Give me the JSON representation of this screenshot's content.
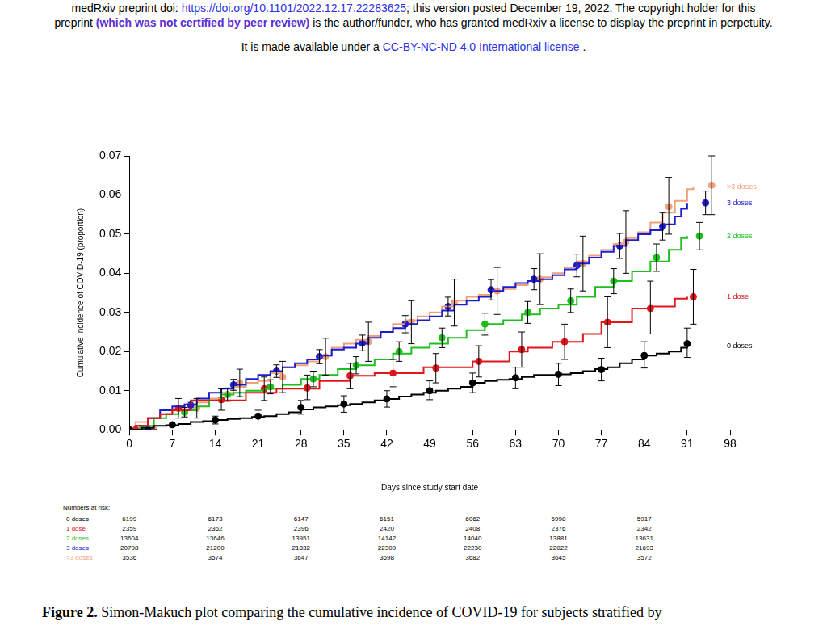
{
  "header": {
    "lines": [
      [
        "medRxiv preprint doi: ",
        "https://doi.org/10.1101/2022.12.17.22283625",
        "; this version posted December 19, 2022. The copyright holder for this"
      ],
      [
        "preprint ",
        "(which was not certified by peer review)",
        " is the author/funder, who has granted medRxiv a license to display the preprint in perpetuity."
      ],
      [
        "It is made available under a ",
        "CC-BY-NC-ND 4.0 International license",
        " ."
      ]
    ]
  },
  "chart_data": {
    "type": "line",
    "line_style": "step",
    "marker": "circle",
    "grid": false,
    "x_label": "Days since study start date",
    "y_label": "Cumulative incidence of COVID-19 (proportion)",
    "xlim": [
      0,
      98
    ],
    "xticks": [
      0,
      7,
      14,
      21,
      28,
      35,
      42,
      49,
      56,
      63,
      70,
      77,
      84,
      91,
      98
    ],
    "ylim": [
      0,
      0.07
    ],
    "yticks": [
      {
        "value": 0,
        "label": "0.00"
      },
      {
        "value": 0.01,
        "label": "0.01"
      },
      {
        "value": 0.02,
        "label": "0.02"
      },
      {
        "value": 0.03,
        "label": "0.03"
      },
      {
        "value": 0.04,
        "label": "0.04"
      },
      {
        "value": 0.05,
        "label": "0.05"
      },
      {
        "value": 0.06,
        "label": "0.06"
      },
      {
        "value": 0.07,
        "label": "0.07"
      }
    ],
    "series": [
      {
        "name": "0 doses",
        "color": "#000000",
        "x": [
          0,
          2,
          4,
          6,
          8,
          10,
          12,
          14,
          16,
          18,
          20,
          22,
          24,
          26,
          28,
          30,
          32,
          34,
          36,
          38,
          40,
          42,
          44,
          46,
          48,
          50,
          52,
          54,
          56,
          58,
          60,
          62,
          64,
          66,
          68,
          70,
          72,
          74,
          76,
          78,
          80,
          82,
          84,
          86,
          88,
          90,
          91
        ],
        "values": [
          0,
          0.0005,
          0.001,
          0.0012,
          0.0015,
          0.002,
          0.0022,
          0.0025,
          0.0028,
          0.003,
          0.0033,
          0.0035,
          0.004,
          0.0045,
          0.0052,
          0.0057,
          0.006,
          0.0063,
          0.0066,
          0.007,
          0.0075,
          0.0079,
          0.0085,
          0.009,
          0.0095,
          0.01,
          0.0105,
          0.011,
          0.012,
          0.0125,
          0.0128,
          0.013,
          0.0135,
          0.014,
          0.014,
          0.0142,
          0.0145,
          0.015,
          0.0155,
          0.016,
          0.017,
          0.018,
          0.019,
          0.0195,
          0.02,
          0.021,
          0.0215
        ],
        "points": {
          "x": [
            0,
            7,
            14,
            21,
            28,
            35,
            42,
            49,
            56,
            63,
            70,
            77,
            84,
            91
          ],
          "values": [
            0,
            0.0013,
            0.0025,
            0.0035,
            0.0057,
            0.0066,
            0.0079,
            0.01,
            0.012,
            0.0133,
            0.0142,
            0.0154,
            0.019,
            0.022
          ],
          "lower": [
            0,
            0.0008,
            0.0015,
            0.002,
            0.004,
            0.0045,
            0.0058,
            0.0077,
            0.0095,
            0.0105,
            0.0113,
            0.0125,
            0.0158,
            0.0185
          ],
          "upper": [
            0,
            0.002,
            0.0035,
            0.005,
            0.0075,
            0.0087,
            0.01,
            0.0125,
            0.0145,
            0.016,
            0.017,
            0.0183,
            0.0225,
            0.026
          ]
        }
      },
      {
        "name": "1 dose",
        "color": "#e0161b",
        "x": [
          0,
          1,
          3,
          5,
          7,
          10,
          19,
          24,
          31,
          36,
          40,
          48,
          56,
          62,
          65,
          69,
          74,
          77,
          82,
          85,
          89,
          91
        ],
        "values": [
          0,
          0.001,
          0.003,
          0.004,
          0.005,
          0.0075,
          0.0095,
          0.0105,
          0.0125,
          0.0138,
          0.0145,
          0.016,
          0.0175,
          0.02,
          0.021,
          0.0225,
          0.0245,
          0.0275,
          0.031,
          0.0315,
          0.0335,
          0.034
        ],
        "points": {
          "x": [
            1,
            8,
            15,
            22,
            29,
            36,
            43,
            50,
            57,
            64,
            71,
            78,
            85,
            92
          ],
          "values": [
            0,
            0.0055,
            0.0077,
            0.0105,
            0.0107,
            0.0138,
            0.0145,
            0.0158,
            0.0175,
            0.0205,
            0.0225,
            0.0275,
            0.031,
            0.034
          ],
          "lower": [
            0,
            0.003,
            0.005,
            0.0075,
            0.0077,
            0.0105,
            0.011,
            0.012,
            0.0135,
            0.016,
            0.018,
            0.021,
            0.0245,
            0.027
          ],
          "upper": [
            0,
            0.008,
            0.0105,
            0.0135,
            0.014,
            0.017,
            0.018,
            0.0195,
            0.0215,
            0.025,
            0.027,
            0.034,
            0.038,
            0.041
          ]
        }
      },
      {
        "name": "2 doses",
        "color": "#1fbf1f",
        "x": [
          0,
          2,
          4,
          6,
          8,
          11,
          13,
          15,
          17,
          19,
          22,
          25,
          28,
          31,
          34,
          37,
          40,
          43,
          46,
          49,
          52,
          55,
          58,
          61,
          64,
          67,
          70,
          73,
          76,
          79,
          82,
          85,
          88,
          90,
          91
        ],
        "values": [
          0,
          0.001,
          0.003,
          0.004,
          0.005,
          0.006,
          0.0075,
          0.009,
          0.0095,
          0.01,
          0.0105,
          0.0115,
          0.013,
          0.014,
          0.0155,
          0.0165,
          0.018,
          0.0195,
          0.021,
          0.022,
          0.0235,
          0.0255,
          0.027,
          0.028,
          0.0295,
          0.031,
          0.032,
          0.034,
          0.0365,
          0.038,
          0.0405,
          0.043,
          0.046,
          0.049,
          0.0495
        ],
        "points": {
          "x": [
            2,
            9,
            16,
            23,
            30,
            37,
            44,
            51,
            58,
            65,
            72,
            79,
            86,
            93
          ],
          "values": [
            0,
            0.0045,
            0.009,
            0.011,
            0.013,
            0.0165,
            0.02,
            0.0235,
            0.027,
            0.03,
            0.033,
            0.038,
            0.044,
            0.0495
          ],
          "lower": [
            0,
            0.0033,
            0.0073,
            0.0092,
            0.011,
            0.0143,
            0.0175,
            0.021,
            0.0242,
            0.0272,
            0.03,
            0.0348,
            0.0405,
            0.046
          ],
          "upper": [
            0,
            0.0057,
            0.0107,
            0.0128,
            0.015,
            0.0187,
            0.0225,
            0.026,
            0.0298,
            0.0328,
            0.036,
            0.0412,
            0.0475,
            0.053
          ]
        }
      },
      {
        "name": "3 doses",
        "color": "#1c1cd0",
        "x": [
          0,
          1,
          3,
          5,
          7,
          9,
          11,
          13,
          15,
          17,
          19,
          21,
          23,
          25,
          27,
          29,
          31,
          33,
          35,
          37,
          39,
          41,
          43,
          45,
          47,
          49,
          51,
          53,
          55,
          57,
          59,
          61,
          63,
          65,
          67,
          69,
          71,
          73,
          75,
          77,
          79,
          81,
          83,
          85,
          87,
          89,
          90,
          91
        ],
        "values": [
          0,
          0.001,
          0.003,
          0.005,
          0.006,
          0.0065,
          0.008,
          0.0095,
          0.0105,
          0.0115,
          0.013,
          0.014,
          0.015,
          0.016,
          0.017,
          0.018,
          0.019,
          0.0205,
          0.021,
          0.022,
          0.0235,
          0.025,
          0.026,
          0.027,
          0.028,
          0.029,
          0.0305,
          0.032,
          0.033,
          0.034,
          0.0355,
          0.0365,
          0.0375,
          0.038,
          0.0385,
          0.0395,
          0.041,
          0.0425,
          0.044,
          0.0455,
          0.047,
          0.0485,
          0.05,
          0.051,
          0.0525,
          0.0545,
          0.0565,
          0.058
        ],
        "points": {
          "x": [
            3,
            10,
            17,
            24,
            31,
            38,
            45,
            52,
            59,
            66,
            73,
            80,
            87,
            94
          ],
          "values": [
            0,
            0.0063,
            0.0115,
            0.015,
            0.0187,
            0.0222,
            0.027,
            0.0315,
            0.0358,
            0.0385,
            0.042,
            0.047,
            0.052,
            0.058
          ],
          "lower": [
            0,
            0.0053,
            0.0101,
            0.0134,
            0.0169,
            0.0202,
            0.0248,
            0.0291,
            0.0332,
            0.0358,
            0.0391,
            0.0438,
            0.0485,
            0.055
          ],
          "upper": [
            0,
            0.0073,
            0.0129,
            0.0166,
            0.0205,
            0.0242,
            0.0292,
            0.0339,
            0.0384,
            0.0412,
            0.0449,
            0.0502,
            0.0555,
            0.061
          ]
        }
      },
      {
        "name": ">3 doses",
        "color": "#f0a07a",
        "x": [
          0,
          1,
          3,
          5,
          7,
          9,
          11,
          13,
          15,
          17,
          19,
          21,
          23,
          25,
          27,
          29,
          31,
          33,
          35,
          37,
          39,
          41,
          43,
          45,
          47,
          49,
          51,
          53,
          55,
          57,
          59,
          61,
          63,
          65,
          67,
          69,
          71,
          73,
          75,
          77,
          79,
          81,
          83,
          85,
          87,
          89,
          91,
          92
        ],
        "values": [
          0,
          0.002,
          0.003,
          0.004,
          0.005,
          0.0065,
          0.007,
          0.008,
          0.0095,
          0.011,
          0.012,
          0.0125,
          0.0145,
          0.016,
          0.0165,
          0.0175,
          0.019,
          0.021,
          0.022,
          0.023,
          0.024,
          0.025,
          0.027,
          0.028,
          0.029,
          0.03,
          0.0315,
          0.033,
          0.034,
          0.0345,
          0.0355,
          0.036,
          0.037,
          0.038,
          0.039,
          0.04,
          0.0415,
          0.043,
          0.0445,
          0.046,
          0.0475,
          0.049,
          0.0505,
          0.053,
          0.0555,
          0.0585,
          0.0615,
          0.062
        ],
        "points": {
          "x": [
            4,
            11,
            18,
            25,
            32,
            39,
            46,
            53,
            60,
            67,
            74,
            81,
            88,
            95
          ],
          "values": [
            0,
            0.0055,
            0.012,
            0.0135,
            0.0187,
            0.0225,
            0.0275,
            0.0325,
            0.0355,
            0.0385,
            0.0425,
            0.048,
            0.057,
            0.0625
          ],
          "lower": [
            0,
            0.003,
            0.0085,
            0.0095,
            0.014,
            0.0175,
            0.022,
            0.0265,
            0.0295,
            0.032,
            0.0355,
            0.04,
            0.05,
            0.055
          ],
          "upper": [
            0,
            0.008,
            0.0155,
            0.0175,
            0.0234,
            0.0275,
            0.033,
            0.0385,
            0.0415,
            0.045,
            0.0495,
            0.056,
            0.0645,
            0.07
          ]
        }
      }
    ]
  },
  "risk_table": {
    "title": "Numbers at risk:",
    "rows": [
      {
        "label": "0 doses",
        "values": [
          6199,
          6173,
          6147,
          6151,
          6062,
          5998,
          5917
        ]
      },
      {
        "label": "1 dose",
        "values": [
          2359,
          2362,
          2396,
          2420,
          2408,
          2376,
          2342
        ]
      },
      {
        "label": "2 doses",
        "values": [
          13604,
          13646,
          13951,
          14142,
          14040,
          13881,
          13631
        ]
      },
      {
        "label": "3 doses",
        "values": [
          20798,
          21200,
          21832,
          22309,
          22230,
          22022,
          21693
        ]
      },
      {
        "label": ">3 doses",
        "values": [
          3536,
          3574,
          3647,
          3698,
          3682,
          3645,
          3572
        ]
      }
    ]
  },
  "caption": [
    "Figure 2.",
    " Simon-Makuch plot comparing the cumulative incidence of COVID-19 for subjects stratified by"
  ]
}
